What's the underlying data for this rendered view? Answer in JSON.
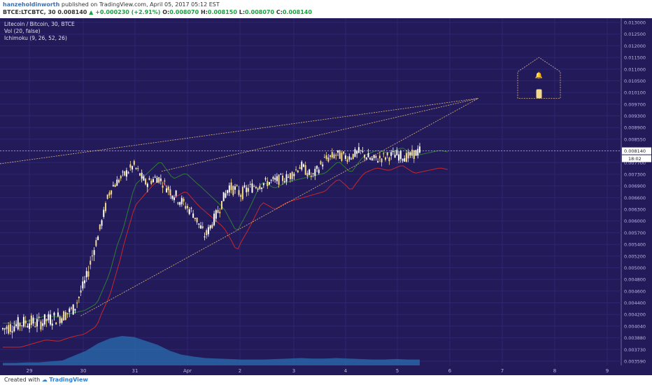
{
  "header": {
    "author": "hanzeholdinworth",
    "published_text": "published on TradingView.com, April 05, 2017 05:12 EST",
    "symbol_line_prefix": "BTCE:LTCBTC, 30  0.008140",
    "change": "+0.000230 (+2.91%)",
    "o_label": "O:",
    "o": "0.008070",
    "h_label": "H:",
    "h": "0.008150",
    "l_label": "L:",
    "l": "0.008070",
    "c_label": "C:",
    "c": "0.008140"
  },
  "legend": {
    "line1": "Litecoin / Bitcoin, 30, BTCE",
    "line2": "Vol (20, false)",
    "line3": "Ichimoku (9, 26, 52, 26)"
  },
  "footer": {
    "created_with": "Created with",
    "brand": "TradingView"
  },
  "colors": {
    "background": "#231a5a",
    "candle": "#f5d98a",
    "candle_up": "#ffffff",
    "trendline": "#e0b878",
    "ichimoku_green": "#2e7d32",
    "ichimoku_red": "#c62828",
    "volume": "#2a6fb0",
    "axis_text": "#b8b8d8"
  },
  "chart_data": {
    "type": "candlestick",
    "title": "Litecoin / Bitcoin, 30, BTCE",
    "x_ticks": [
      "29",
      "30",
      "31",
      "Apr",
      "2",
      "3",
      "4",
      "5",
      "6",
      "7",
      "8",
      "9"
    ],
    "y_ticks": [
      "0.013000",
      "0.012500",
      "0.012000",
      "0.011500",
      "0.011000",
      "0.010500",
      "0.010100",
      "0.009700",
      "0.009300",
      "0.008900",
      "0.008550",
      "0.008140",
      "0.007700",
      "0.007300",
      "0.006900",
      "0.006600",
      "0.006300",
      "0.006000",
      "0.005700",
      "0.005400",
      "0.005200",
      "0.005000",
      "0.004800",
      "0.004600",
      "0.004400",
      "0.004200",
      "0.004040",
      "0.003880",
      "0.003730",
      "0.003590"
    ],
    "last_price": "0.008140",
    "countdown": "18:02",
    "price_path": [
      [
        "29",
        0.004
      ],
      [
        "29",
        0.00405
      ],
      [
        "29",
        0.0041
      ],
      [
        "29",
        0.00408
      ],
      [
        "30",
        0.00414
      ],
      [
        "30",
        0.00418
      ],
      [
        "30",
        0.0043
      ],
      [
        "30",
        0.0048
      ],
      [
        "30",
        0.0056
      ],
      [
        "30",
        0.0068
      ],
      [
        "30",
        0.0072
      ],
      [
        "30",
        0.0076
      ],
      [
        "31",
        0.007
      ],
      [
        "31",
        0.0072
      ],
      [
        "31",
        0.0068
      ],
      [
        "31",
        0.0065
      ],
      [
        "31",
        0.0062
      ],
      [
        "Apr",
        0.0056
      ],
      [
        "Apr",
        0.0062
      ],
      [
        "Apr",
        0.0069
      ],
      [
        "Apr",
        0.0067
      ],
      [
        "2",
        0.0069
      ],
      [
        "2",
        0.007
      ],
      [
        "2",
        0.0071
      ],
      [
        "2",
        0.0072
      ],
      [
        "3",
        0.0076
      ],
      [
        "3",
        0.0072
      ],
      [
        "3",
        0.0078
      ],
      [
        "3",
        0.008
      ],
      [
        "4",
        0.0079
      ],
      [
        "4",
        0.0081
      ],
      [
        "4",
        0.0078
      ],
      [
        "4",
        0.0079
      ],
      [
        "5",
        0.008
      ],
      [
        "5",
        0.0079
      ],
      [
        "5",
        0.00814
      ]
    ],
    "volume_profile": [
      0.05,
      0.05,
      0.06,
      0.06,
      0.08,
      0.1,
      0.2,
      0.3,
      0.45,
      0.55,
      0.6,
      0.58,
      0.5,
      0.42,
      0.3,
      0.22,
      0.18,
      0.15,
      0.14,
      0.13,
      0.12,
      0.12,
      0.12,
      0.13,
      0.14,
      0.15,
      0.14,
      0.14,
      0.15,
      0.14,
      0.13,
      0.12,
      0.12,
      0.13,
      0.12,
      0.12
    ],
    "trendlines": [
      {
        "from": [
          0.0,
          0.00766
        ],
        "to": [
          0.77,
          0.0099
        ]
      },
      {
        "from": [
          0.26,
          0.0074
        ],
        "to": [
          0.77,
          0.0099
        ]
      },
      {
        "from": [
          0.13,
          0.00418
        ],
        "to": [
          0.77,
          0.0099
        ]
      }
    ],
    "alert_zone": {
      "price_top": 0.0115,
      "price_bottom": 0.0099,
      "x_start": "7",
      "x_end": "8"
    }
  }
}
